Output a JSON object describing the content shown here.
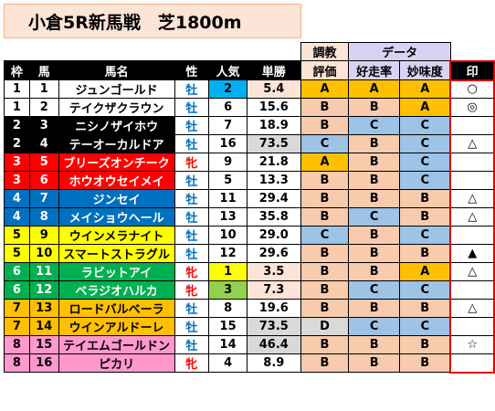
{
  "title": "小倉5R新馬戦　芝1800m",
  "headers": {
    "waku": "枠",
    "uma": "馬",
    "name": "馬名",
    "sex": "性",
    "pop": "人気",
    "odds": "単勝",
    "chokyo_top": "調教",
    "chokyo_bottom": "評価",
    "data_group": "データ",
    "kosoritsu": "好走率",
    "myomido": "妙味度",
    "mark": "印"
  },
  "colors": {
    "waku1": "#ffffff",
    "waku2": "#000000",
    "waku3": "#ff0000",
    "waku4": "#0070c0",
    "waku5": "#ffff00",
    "waku6": "#00b050",
    "waku7": "#ffc000",
    "waku8": "#ff99cc",
    "sex_colt": "#0070c0",
    "sex_filly": "#ff0000",
    "pop1": "#ffff00",
    "pop2": "#00b0f0",
    "pop3": "#92d050",
    "grade_a": "#ffc000",
    "grade_b": "#f8cbad",
    "grade_c": "#9dc3e6",
    "grade_d": "#d9d9d9"
  },
  "rows": [
    {
      "waku": "1",
      "uma": "1",
      "name": "ジュンゴールド",
      "sex": "牡",
      "pop": "2",
      "odds": "5.4",
      "chokyo": "A",
      "kosoritsu": "A",
      "myomido": "A",
      "mark": "○"
    },
    {
      "waku": "1",
      "uma": "2",
      "name": "テイクザクラウン",
      "sex": "牡",
      "pop": "6",
      "odds": "15.6",
      "chokyo": "B",
      "kosoritsu": "B",
      "myomido": "A",
      "mark": "◎"
    },
    {
      "waku": "2",
      "uma": "3",
      "name": "ニシノザイホウ",
      "sex": "牡",
      "pop": "7",
      "odds": "18.9",
      "chokyo": "B",
      "kosoritsu": "C",
      "myomido": "C",
      "mark": ""
    },
    {
      "waku": "2",
      "uma": "4",
      "name": "テーオーカルドア",
      "sex": "牡",
      "pop": "16",
      "odds": "73.5",
      "chokyo": "C",
      "kosoritsu": "B",
      "myomido": "C",
      "mark": "△"
    },
    {
      "waku": "3",
      "uma": "5",
      "name": "ブリーズオンチーク",
      "sex": "牝",
      "pop": "9",
      "odds": "21.8",
      "chokyo": "A",
      "kosoritsu": "B",
      "myomido": "C",
      "mark": ""
    },
    {
      "waku": "3",
      "uma": "6",
      "name": "ホウオウセイメイ",
      "sex": "牡",
      "pop": "5",
      "odds": "13.3",
      "chokyo": "B",
      "kosoritsu": "B",
      "myomido": "C",
      "mark": ""
    },
    {
      "waku": "4",
      "uma": "7",
      "name": "ジンセイ",
      "sex": "牡",
      "pop": "11",
      "odds": "29.4",
      "chokyo": "B",
      "kosoritsu": "B",
      "myomido": "B",
      "mark": "△"
    },
    {
      "waku": "4",
      "uma": "8",
      "name": "メイショウヘール",
      "sex": "牡",
      "pop": "13",
      "odds": "35.8",
      "chokyo": "B",
      "kosoritsu": "C",
      "myomido": "B",
      "mark": "△"
    },
    {
      "waku": "5",
      "uma": "9",
      "name": "ウインメラナイト",
      "sex": "牡",
      "pop": "10",
      "odds": "29.0",
      "chokyo": "C",
      "kosoritsu": "B",
      "myomido": "C",
      "mark": ""
    },
    {
      "waku": "5",
      "uma": "10",
      "name": "スマートストラグル",
      "sex": "牡",
      "pop": "12",
      "odds": "29.6",
      "chokyo": "B",
      "kosoritsu": "B",
      "myomido": "B",
      "mark": "▲"
    },
    {
      "waku": "6",
      "uma": "11",
      "name": "ラビットアイ",
      "sex": "牝",
      "pop": "1",
      "odds": "3.5",
      "chokyo": "B",
      "kosoritsu": "B",
      "myomido": "A",
      "mark": "△"
    },
    {
      "waku": "6",
      "uma": "12",
      "name": "ベラジオハルカ",
      "sex": "牝",
      "pop": "3",
      "odds": "7.3",
      "chokyo": "B",
      "kosoritsu": "C",
      "myomido": "C",
      "mark": ""
    },
    {
      "waku": "7",
      "uma": "13",
      "name": "ロードバルベーラ",
      "sex": "牡",
      "pop": "8",
      "odds": "19.6",
      "chokyo": "B",
      "kosoritsu": "B",
      "myomido": "B",
      "mark": "△"
    },
    {
      "waku": "7",
      "uma": "14",
      "name": "ウインアルドーレ",
      "sex": "牡",
      "pop": "15",
      "odds": "73.5",
      "chokyo": "D",
      "kosoritsu": "C",
      "myomido": "C",
      "mark": ""
    },
    {
      "waku": "8",
      "uma": "15",
      "name": "テイエムゴールドン",
      "sex": "牡",
      "pop": "14",
      "odds": "46.4",
      "chokyo": "B",
      "kosoritsu": "B",
      "myomido": "B",
      "mark": "☆"
    },
    {
      "waku": "8",
      "uma": "16",
      "name": "ピカリ",
      "sex": "牝",
      "pop": "4",
      "odds": "8.9",
      "chokyo": "B",
      "kosoritsu": "B",
      "myomido": "B",
      "mark": ""
    }
  ]
}
